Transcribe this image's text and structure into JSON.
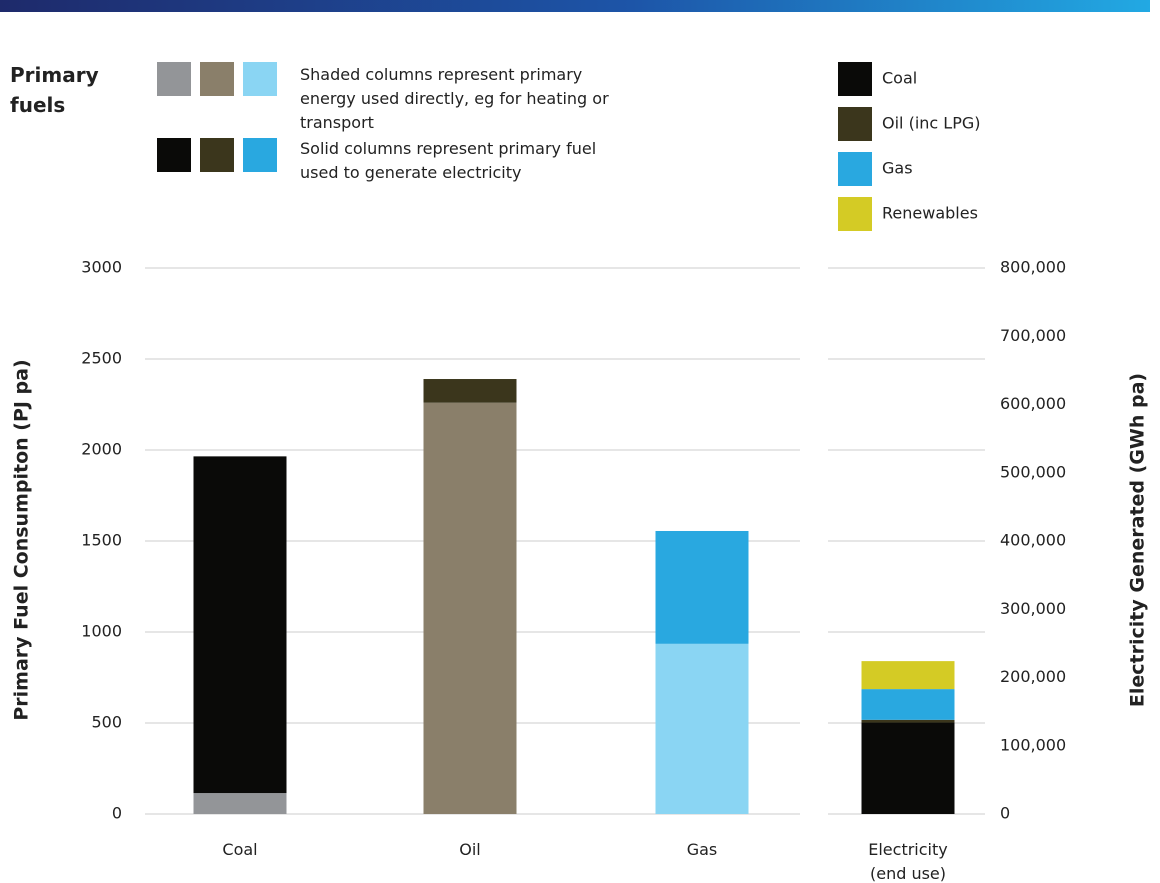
{
  "chart_data": {
    "type": "stacked_bar",
    "legend_title": "Primary fuels",
    "direct_note": "Shaded columns represent primary energy used directly, eg for heating or transport",
    "generation_note": "Solid columns represent primary fuel used to generate electricity",
    "ylabel": "Primary Fuel Consumpiton (PJ pa)",
    "y2label": "Electricity Generated (GWh pa)",
    "ylim": [
      0,
      3000
    ],
    "yticks": [
      0,
      500,
      1000,
      1500,
      2000,
      2500,
      3000
    ],
    "y2lim": [
      0,
      800000
    ],
    "y2ticks": [
      0,
      {
        "value": 100000,
        "label": "100,000"
      },
      {
        "value": 200000,
        "label": "200,000"
      },
      {
        "value": 300000,
        "label": "300,000"
      },
      {
        "value": 400000,
        "label": "400,000"
      },
      {
        "value": 500000,
        "label": "500,000"
      },
      {
        "value": 600000,
        "label": "600,000"
      },
      {
        "value": 700000,
        "label": "700,000"
      },
      {
        "value": 800000,
        "label": "800,000"
      }
    ],
    "grid": true,
    "categories": [
      "Coal",
      "Oil",
      "Gas",
      "Electricity (end use)"
    ],
    "category_axes": [
      "y",
      "y",
      "y",
      "y2"
    ],
    "direct": {
      "colors": [
        "#939598",
        "#8a7f6a",
        "#8ad5f3",
        null
      ],
      "values": [
        115,
        2260,
        935,
        null
      ]
    },
    "series": [
      {
        "name": "Coal",
        "color": "#0a0a08",
        "values": [
          1850,
          null,
          null,
          134000
        ]
      },
      {
        "name": "Oil (inc LPG)",
        "color": "#3b361c",
        "values": [
          null,
          130,
          null,
          4000
        ]
      },
      {
        "name": "Gas",
        "color": "#29a8e0",
        "values": [
          null,
          null,
          620,
          45000
        ]
      },
      {
        "name": "Renewables",
        "color": "#d4cb25",
        "values": [
          null,
          null,
          null,
          41000
        ]
      }
    ]
  }
}
